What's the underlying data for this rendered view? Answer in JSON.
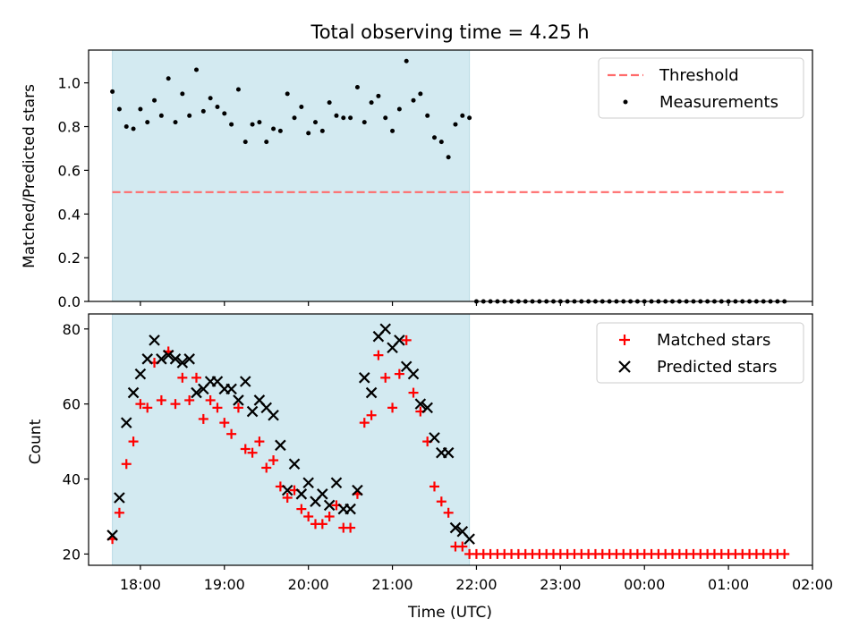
{
  "chart_data": [
    {
      "panel": "top",
      "type": "scatter",
      "title": "Total observing time = 4.25 h",
      "xlabel": "",
      "ylabel": "Matched/Predicted stars",
      "xlim": [
        "17:23",
        "02:00"
      ],
      "ylim": [
        0,
        1.15
      ],
      "yticks": [
        "0.0",
        "0.2",
        "0.4",
        "0.6",
        "0.8",
        "1.0"
      ],
      "grid": false,
      "legend_position": "top-right",
      "shaded_interval": {
        "start": "17:40",
        "end": "21:55",
        "color": "#d3eaf1"
      },
      "threshold": {
        "name": "Threshold",
        "value": 0.5,
        "color": "#ff6b6b",
        "style": "dashed",
        "start": "17:40",
        "end": "01:40"
      },
      "series": [
        {
          "name": "Measurements",
          "color": "#000000",
          "x": [
            "17:40",
            "17:45",
            "17:50",
            "17:55",
            "18:00",
            "18:05",
            "18:10",
            "18:15",
            "18:20",
            "18:25",
            "18:30",
            "18:35",
            "18:40",
            "18:45",
            "18:50",
            "18:55",
            "19:00",
            "19:05",
            "19:10",
            "19:15",
            "19:20",
            "19:25",
            "19:30",
            "19:35",
            "19:40",
            "19:45",
            "19:50",
            "19:55",
            "20:00",
            "20:05",
            "20:10",
            "20:15",
            "20:20",
            "20:25",
            "20:30",
            "20:35",
            "20:40",
            "20:45",
            "20:50",
            "20:55",
            "21:00",
            "21:05",
            "21:10",
            "21:15",
            "21:20",
            "21:25",
            "21:30",
            "21:35",
            "21:40",
            "21:45",
            "21:50",
            "21:55",
            "22:00",
            "22:05",
            "22:10",
            "22:15",
            "22:20",
            "22:25",
            "22:30",
            "22:35",
            "22:40",
            "22:45",
            "22:50",
            "22:55",
            "23:00",
            "23:05",
            "23:10",
            "23:15",
            "23:20",
            "23:25",
            "23:30",
            "23:35",
            "23:40",
            "23:45",
            "23:50",
            "23:55",
            "00:00",
            "00:05",
            "00:10",
            "00:15",
            "00:20",
            "00:25",
            "00:30",
            "00:35",
            "00:40",
            "00:45",
            "00:50",
            "00:55",
            "01:00",
            "01:05",
            "01:10",
            "01:15",
            "01:20",
            "01:25",
            "01:30",
            "01:35",
            "01:40"
          ],
          "y": [
            0.96,
            0.88,
            0.8,
            0.79,
            0.88,
            0.82,
            0.92,
            0.85,
            1.02,
            0.82,
            0.95,
            0.85,
            1.06,
            0.87,
            0.93,
            0.89,
            0.86,
            0.81,
            0.97,
            0.73,
            0.81,
            0.82,
            0.73,
            0.79,
            0.78,
            0.95,
            0.84,
            0.89,
            0.77,
            0.82,
            0.78,
            0.91,
            0.85,
            0.84,
            0.84,
            0.98,
            0.82,
            0.91,
            0.94,
            0.84,
            0.78,
            0.88,
            1.1,
            0.92,
            0.95,
            0.85,
            0.75,
            0.73,
            0.66,
            0.81,
            0.85,
            0.84,
            0,
            0,
            0,
            0,
            0,
            0,
            0,
            0,
            0,
            0,
            0,
            0,
            0,
            0,
            0,
            0,
            0,
            0,
            0,
            0,
            0,
            0,
            0,
            0,
            0,
            0,
            0,
            0,
            0,
            0,
            0,
            0,
            0,
            0,
            0,
            0,
            0,
            0,
            0,
            0,
            0,
            0,
            0,
            0,
            0
          ]
        }
      ]
    },
    {
      "panel": "bottom",
      "type": "scatter",
      "title": "",
      "xlabel": "Time (UTC)",
      "ylabel": "Count",
      "xlim": [
        "17:23",
        "02:00"
      ],
      "ylim": [
        17,
        84
      ],
      "xticks": [
        "18:00",
        "19:00",
        "20:00",
        "21:00",
        "22:00",
        "23:00",
        "00:00",
        "01:00",
        "02:00"
      ],
      "yticks": [
        "20",
        "40",
        "60",
        "80"
      ],
      "grid": false,
      "legend_position": "top-right",
      "shaded_interval": {
        "start": "17:40",
        "end": "21:55",
        "color": "#d3eaf1"
      },
      "series": [
        {
          "name": "Matched stars",
          "marker": "plus",
          "color": "#ff0000",
          "x": [
            "17:40",
            "17:45",
            "17:50",
            "17:55",
            "18:00",
            "18:05",
            "18:10",
            "18:15",
            "18:20",
            "18:25",
            "18:30",
            "18:35",
            "18:40",
            "18:45",
            "18:50",
            "18:55",
            "19:00",
            "19:05",
            "19:10",
            "19:15",
            "19:20",
            "19:25",
            "19:30",
            "19:35",
            "19:40",
            "19:45",
            "19:50",
            "19:55",
            "20:00",
            "20:05",
            "20:10",
            "20:15",
            "20:20",
            "20:25",
            "20:30",
            "20:35",
            "20:40",
            "20:45",
            "20:50",
            "20:55",
            "21:00",
            "21:05",
            "21:10",
            "21:15",
            "21:20",
            "21:25",
            "21:30",
            "21:35",
            "21:40",
            "21:45",
            "21:50",
            "21:55",
            "22:00",
            "22:05",
            "22:10",
            "22:15",
            "22:20",
            "22:25",
            "22:30",
            "22:35",
            "22:40",
            "22:45",
            "22:50",
            "22:55",
            "23:00",
            "23:05",
            "23:10",
            "23:15",
            "23:20",
            "23:25",
            "23:30",
            "23:35",
            "23:40",
            "23:45",
            "23:50",
            "23:55",
            "00:00",
            "00:05",
            "00:10",
            "00:15",
            "00:20",
            "00:25",
            "00:30",
            "00:35",
            "00:40",
            "00:45",
            "00:50",
            "00:55",
            "01:00",
            "01:05",
            "01:10",
            "01:15",
            "01:20",
            "01:25",
            "01:30",
            "01:35",
            "01:40"
          ],
          "y": [
            24,
            31,
            44,
            50,
            60,
            59,
            71,
            61,
            74,
            60,
            67,
            61,
            67,
            56,
            61,
            59,
            55,
            52,
            59,
            48,
            47,
            50,
            43,
            45,
            38,
            35,
            37,
            32,
            30,
            28,
            28,
            30,
            33,
            27,
            27,
            36,
            55,
            57,
            73,
            67,
            59,
            68,
            77,
            63,
            58,
            50,
            38,
            34,
            31,
            22,
            22,
            20,
            20,
            20,
            20,
            20,
            20,
            20,
            20,
            20,
            20,
            20,
            20,
            20,
            20,
            20,
            20,
            20,
            20,
            20,
            20,
            20,
            20,
            20,
            20,
            20,
            20,
            20,
            20,
            20,
            20,
            20,
            20,
            20,
            20,
            20,
            20,
            20,
            20,
            20,
            20,
            20,
            20,
            20,
            20,
            20,
            20
          ]
        },
        {
          "name": "Predicted stars",
          "marker": "x",
          "color": "#000000",
          "x": [
            "17:40",
            "17:45",
            "17:50",
            "17:55",
            "18:00",
            "18:05",
            "18:10",
            "18:15",
            "18:20",
            "18:25",
            "18:30",
            "18:35",
            "18:40",
            "18:45",
            "18:50",
            "18:55",
            "19:00",
            "19:05",
            "19:10",
            "19:15",
            "19:20",
            "19:25",
            "19:30",
            "19:35",
            "19:40",
            "19:45",
            "19:50",
            "19:55",
            "20:00",
            "20:05",
            "20:10",
            "20:15",
            "20:20",
            "20:25",
            "20:30",
            "20:35",
            "20:40",
            "20:45",
            "20:50",
            "20:55",
            "21:00",
            "21:05",
            "21:10",
            "21:15",
            "21:20",
            "21:25",
            "21:30",
            "21:35",
            "21:40",
            "21:45",
            "21:50",
            "21:55"
          ],
          "y": [
            25,
            35,
            55,
            63,
            68,
            72,
            77,
            72,
            73,
            72,
            71,
            72,
            63,
            64,
            66,
            66,
            64,
            64,
            61,
            66,
            58,
            61,
            59,
            57,
            49,
            37,
            44,
            36,
            39,
            34,
            36,
            33,
            39,
            32,
            32,
            37,
            67,
            63,
            78,
            80,
            75,
            77,
            70,
            68,
            60,
            59,
            51,
            47,
            47,
            27,
            26,
            24
          ]
        }
      ]
    }
  ]
}
